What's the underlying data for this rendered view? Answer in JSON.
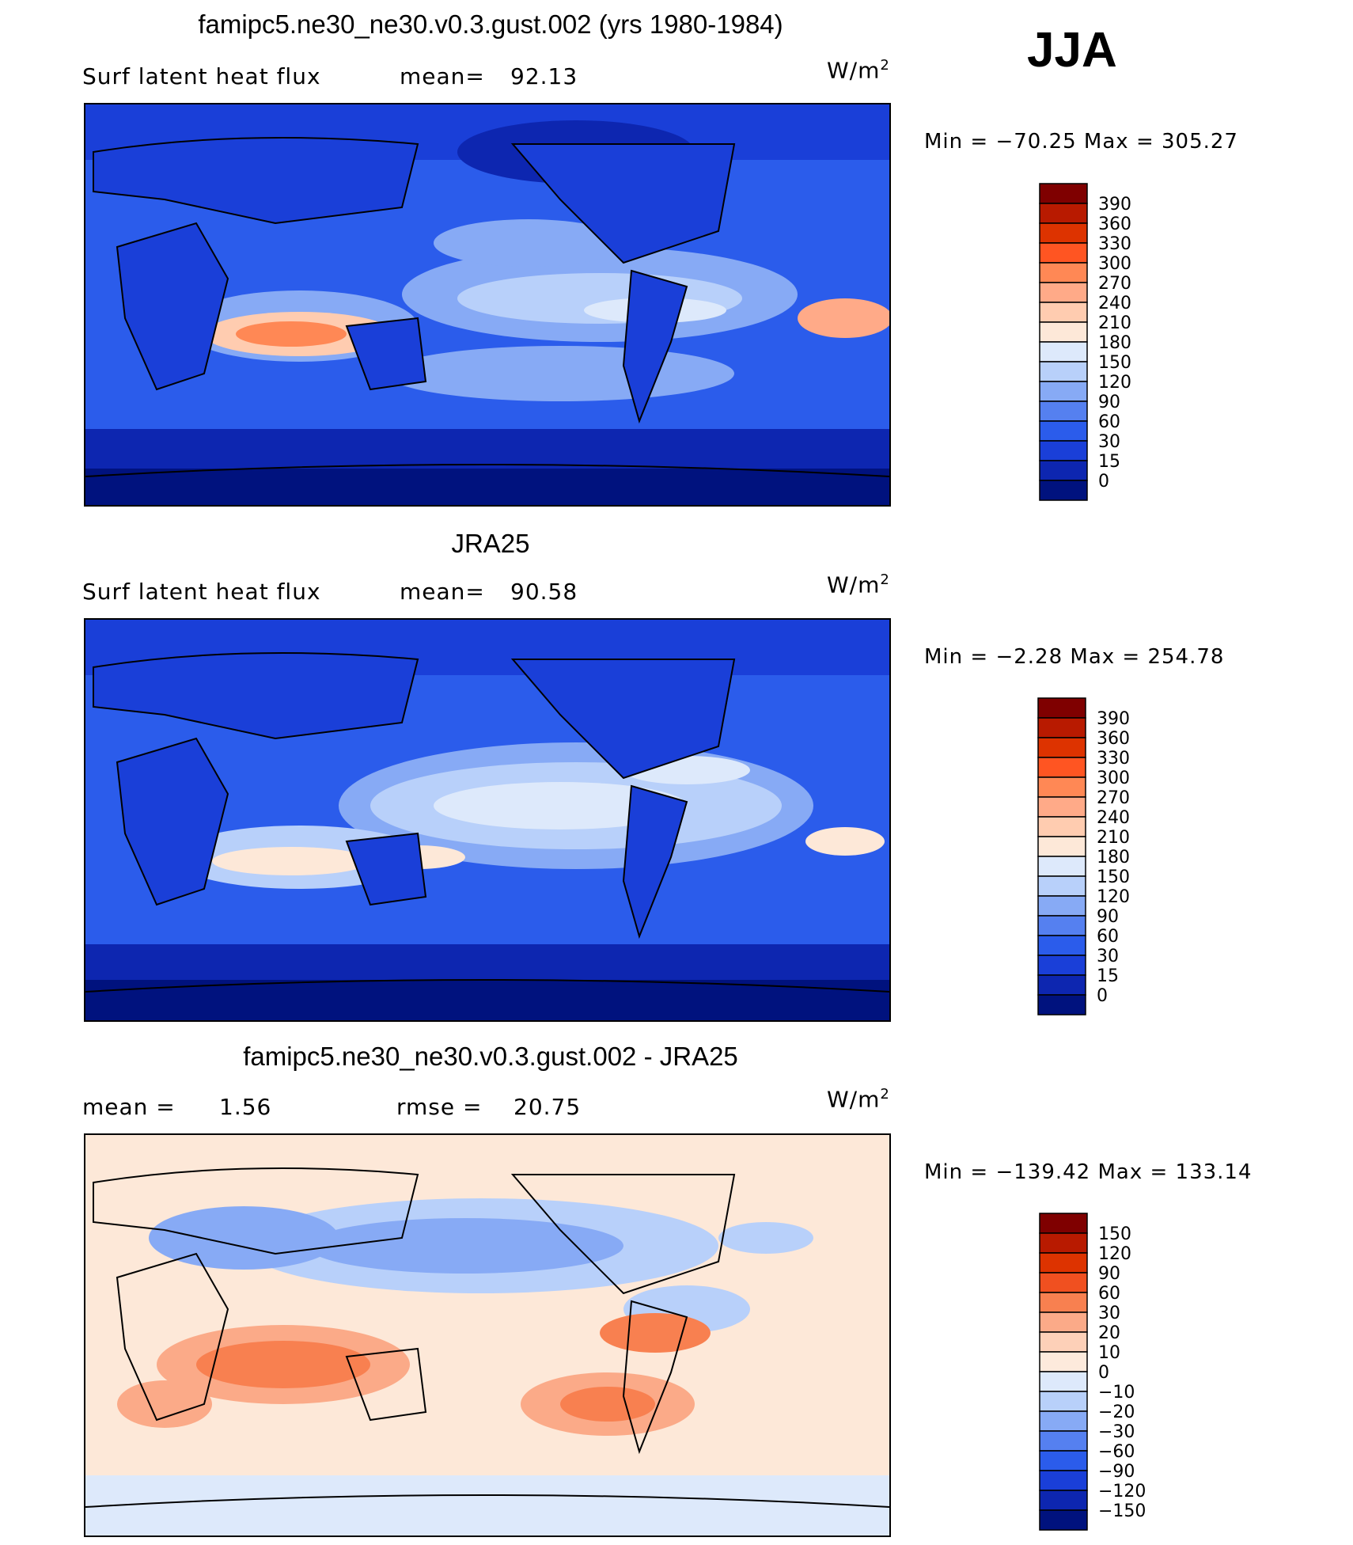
{
  "season": "JJA",
  "chart_data": [
    {
      "type": "heatmap",
      "title": "famipc5.ne30_ne30.v0.3.gust.002 (yrs 1980-1984)",
      "variable": "Surf latent heat flux",
      "stat_label": "mean=",
      "stat_value": "92.13",
      "units_base": "W/m",
      "units_exp": "2",
      "min_max": "Min = −70.25 Max = 305.27",
      "colorbar_labels": [
        "390",
        "360",
        "330",
        "300",
        "270",
        "240",
        "210",
        "180",
        "150",
        "120",
        "90",
        "60",
        "30",
        "15",
        "0"
      ],
      "colors": [
        "#7f0000",
        "#b81a00",
        "#dd3300",
        "#ff5522",
        "#ff8855",
        "#ffaa88",
        "#ffccb0",
        "#fde8d8",
        "#dde9fb",
        "#b8d0fa",
        "#87aaf5",
        "#5580f0",
        "#2b5ceb",
        "#1a3fd8",
        "#0d26b0",
        "#00127e"
      ]
    },
    {
      "type": "heatmap",
      "title": "JRA25",
      "variable": "Surf latent heat flux",
      "stat_label": "mean=",
      "stat_value": "90.58",
      "units_base": "W/m",
      "units_exp": "2",
      "min_max": "Min =  −2.28 Max = 254.78",
      "colorbar_labels": [
        "390",
        "360",
        "330",
        "300",
        "270",
        "240",
        "210",
        "180",
        "150",
        "120",
        "90",
        "60",
        "30",
        "15",
        "0"
      ],
      "colors": [
        "#7f0000",
        "#b81a00",
        "#dd3300",
        "#ff5522",
        "#ff8855",
        "#ffaa88",
        "#ffccb0",
        "#fde8d8",
        "#dde9fb",
        "#b8d0fa",
        "#87aaf5",
        "#5580f0",
        "#2b5ceb",
        "#1a3fd8",
        "#0d26b0",
        "#00127e"
      ]
    },
    {
      "type": "heatmap",
      "title": "famipc5.ne30_ne30.v0.3.gust.002 - JRA25",
      "mean_label": "mean =",
      "mean_value": "1.56",
      "rmse_label": "rmse =",
      "rmse_value": "20.75",
      "units_base": "W/m",
      "units_exp": "2",
      "min_max": "Min = −139.42 Max = 133.14",
      "colorbar_labels": [
        "150",
        "120",
        "90",
        "60",
        "30",
        "20",
        "10",
        "0",
        "−10",
        "−20",
        "−30",
        "−60",
        "−90",
        "−120",
        "−150"
      ],
      "colors": [
        "#7f0000",
        "#b81a00",
        "#dd3300",
        "#f05020",
        "#f88050",
        "#fbaa88",
        "#fdd0b8",
        "#fdeadc",
        "#dde9fb",
        "#b8d0fa",
        "#87aaf5",
        "#5580f0",
        "#2b5ceb",
        "#1a3fd8",
        "#0d26b0",
        "#00127e"
      ]
    }
  ]
}
